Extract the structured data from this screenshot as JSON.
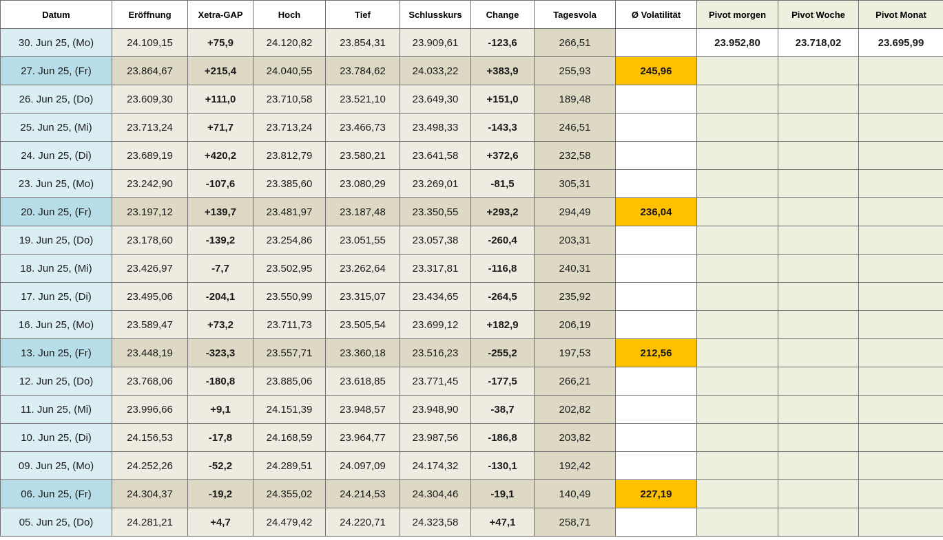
{
  "headers": [
    "Datum",
    "Eröffnung",
    "Xetra-GAP",
    "Hoch",
    "Tief",
    "Schlusskurs",
    "Change",
    "Tagesvola",
    "Ø Volatilität",
    "Pivot morgen",
    "Pivot Woche",
    "Pivot Monat"
  ],
  "colors": {
    "positive": "#1e8c1e",
    "negative": "#e01010",
    "average_highlight": "#ffc000",
    "date_cell": "#daeef3",
    "date_cell_friday": "#b7dde8",
    "pivot_cell": "#ebf1de"
  },
  "rows": [
    {
      "date": "30. Jun 25, (Mo)",
      "open": "24.109,15",
      "gap": "+75,9",
      "high": "24.120,82",
      "low": "23.854,31",
      "close": "23.909,61",
      "change": "-123,6",
      "vola": "266,51",
      "avg": "",
      "pivot_day": "23.952,80",
      "pivot_week": "23.718,02",
      "pivot_month": "23.695,99",
      "friday": false
    },
    {
      "date": "27. Jun 25, (Fr)",
      "open": "23.864,67",
      "gap": "+215,4",
      "high": "24.040,55",
      "low": "23.784,62",
      "close": "24.033,22",
      "change": "+383,9",
      "vola": "255,93",
      "avg": "245,96",
      "pivot_day": "",
      "pivot_week": "",
      "pivot_month": "",
      "friday": true
    },
    {
      "date": "26. Jun 25, (Do)",
      "open": "23.609,30",
      "gap": "+111,0",
      "high": "23.710,58",
      "low": "23.521,10",
      "close": "23.649,30",
      "change": "+151,0",
      "vola": "189,48",
      "avg": "",
      "pivot_day": "",
      "pivot_week": "",
      "pivot_month": "",
      "friday": false
    },
    {
      "date": "25. Jun 25, (Mi)",
      "open": "23.713,24",
      "gap": "+71,7",
      "high": "23.713,24",
      "low": "23.466,73",
      "close": "23.498,33",
      "change": "-143,3",
      "vola": "246,51",
      "avg": "",
      "pivot_day": "",
      "pivot_week": "",
      "pivot_month": "",
      "friday": false
    },
    {
      "date": "24. Jun 25, (Di)",
      "open": "23.689,19",
      "gap": "+420,2",
      "high": "23.812,79",
      "low": "23.580,21",
      "close": "23.641,58",
      "change": "+372,6",
      "vola": "232,58",
      "avg": "",
      "pivot_day": "",
      "pivot_week": "",
      "pivot_month": "",
      "friday": false
    },
    {
      "date": "23. Jun 25, (Mo)",
      "open": "23.242,90",
      "gap": "-107,6",
      "high": "23.385,60",
      "low": "23.080,29",
      "close": "23.269,01",
      "change": "-81,5",
      "vola": "305,31",
      "avg": "",
      "pivot_day": "",
      "pivot_week": "",
      "pivot_month": "",
      "friday": false
    },
    {
      "date": "20. Jun 25, (Fr)",
      "open": "23.197,12",
      "gap": "+139,7",
      "high": "23.481,97",
      "low": "23.187,48",
      "close": "23.350,55",
      "change": "+293,2",
      "vola": "294,49",
      "avg": "236,04",
      "pivot_day": "",
      "pivot_week": "",
      "pivot_month": "",
      "friday": true
    },
    {
      "date": "19. Jun 25, (Do)",
      "open": "23.178,60",
      "gap": "-139,2",
      "high": "23.254,86",
      "low": "23.051,55",
      "close": "23.057,38",
      "change": "-260,4",
      "vola": "203,31",
      "avg": "",
      "pivot_day": "",
      "pivot_week": "",
      "pivot_month": "",
      "friday": false
    },
    {
      "date": "18. Jun 25, (Mi)",
      "open": "23.426,97",
      "gap": "-7,7",
      "high": "23.502,95",
      "low": "23.262,64",
      "close": "23.317,81",
      "change": "-116,8",
      "vola": "240,31",
      "avg": "",
      "pivot_day": "",
      "pivot_week": "",
      "pivot_month": "",
      "friday": false
    },
    {
      "date": "17. Jun 25, (Di)",
      "open": "23.495,06",
      "gap": "-204,1",
      "high": "23.550,99",
      "low": "23.315,07",
      "close": "23.434,65",
      "change": "-264,5",
      "vola": "235,92",
      "avg": "",
      "pivot_day": "",
      "pivot_week": "",
      "pivot_month": "",
      "friday": false
    },
    {
      "date": "16. Jun 25, (Mo)",
      "open": "23.589,47",
      "gap": "+73,2",
      "high": "23.711,73",
      "low": "23.505,54",
      "close": "23.699,12",
      "change": "+182,9",
      "vola": "206,19",
      "avg": "",
      "pivot_day": "",
      "pivot_week": "",
      "pivot_month": "",
      "friday": false
    },
    {
      "date": "13. Jun 25, (Fr)",
      "open": "23.448,19",
      "gap": "-323,3",
      "high": "23.557,71",
      "low": "23.360,18",
      "close": "23.516,23",
      "change": "-255,2",
      "vola": "197,53",
      "avg": "212,56",
      "pivot_day": "",
      "pivot_week": "",
      "pivot_month": "",
      "friday": true
    },
    {
      "date": "12. Jun 25, (Do)",
      "open": "23.768,06",
      "gap": "-180,8",
      "high": "23.885,06",
      "low": "23.618,85",
      "close": "23.771,45",
      "change": "-177,5",
      "vola": "266,21",
      "avg": "",
      "pivot_day": "",
      "pivot_week": "",
      "pivot_month": "",
      "friday": false
    },
    {
      "date": "11. Jun 25, (Mi)",
      "open": "23.996,66",
      "gap": "+9,1",
      "high": "24.151,39",
      "low": "23.948,57",
      "close": "23.948,90",
      "change": "-38,7",
      "vola": "202,82",
      "avg": "",
      "pivot_day": "",
      "pivot_week": "",
      "pivot_month": "",
      "friday": false
    },
    {
      "date": "10. Jun 25, (Di)",
      "open": "24.156,53",
      "gap": "-17,8",
      "high": "24.168,59",
      "low": "23.964,77",
      "close": "23.987,56",
      "change": "-186,8",
      "vola": "203,82",
      "avg": "",
      "pivot_day": "",
      "pivot_week": "",
      "pivot_month": "",
      "friday": false
    },
    {
      "date": "09. Jun 25, (Mo)",
      "open": "24.252,26",
      "gap": "-52,2",
      "high": "24.289,51",
      "low": "24.097,09",
      "close": "24.174,32",
      "change": "-130,1",
      "vola": "192,42",
      "avg": "",
      "pivot_day": "",
      "pivot_week": "",
      "pivot_month": "",
      "friday": false
    },
    {
      "date": "06. Jun 25, (Fr)",
      "open": "24.304,37",
      "gap": "-19,2",
      "high": "24.355,02",
      "low": "24.214,53",
      "close": "24.304,46",
      "change": "-19,1",
      "vola": "140,49",
      "avg": "227,19",
      "pivot_day": "",
      "pivot_week": "",
      "pivot_month": "",
      "friday": true
    },
    {
      "date": "05. Jun 25, (Do)",
      "open": "24.281,21",
      "gap": "+4,7",
      "high": "24.479,42",
      "low": "24.220,71",
      "close": "24.323,58",
      "change": "+47,1",
      "vola": "258,71",
      "avg": "",
      "pivot_day": "",
      "pivot_week": "",
      "pivot_month": "",
      "friday": false
    }
  ]
}
